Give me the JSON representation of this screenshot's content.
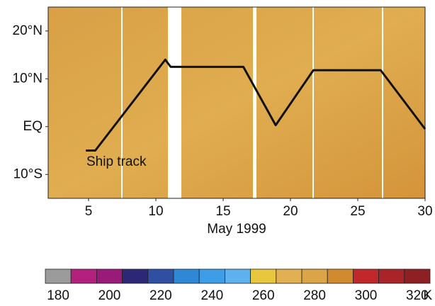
{
  "chart_data": {
    "type": "line",
    "xlabel": "May 1999",
    "annotation": "Ship track",
    "xlim": [
      2,
      30
    ],
    "xticks": [
      5,
      10,
      15,
      20,
      25,
      30
    ],
    "ylim": [
      -15,
      25
    ],
    "yticks": [
      {
        "value": -10,
        "label": "10°S"
      },
      {
        "value": 0,
        "label": "EQ"
      },
      {
        "value": 10,
        "label": "10°N"
      },
      {
        "value": 20,
        "label": "20°N"
      }
    ],
    "series": [
      {
        "name": "Ship track",
        "color": "#111111",
        "x": [
          4.8,
          5.5,
          10.7,
          11.1,
          16.5,
          18.9,
          21.7,
          26.7,
          30
        ],
        "values": [
          -5,
          -5,
          14,
          12.5,
          12.5,
          0.3,
          11.8,
          11.8,
          -0.5
        ]
      }
    ],
    "colorbar": {
      "bins": [
        175,
        185,
        195,
        205,
        215,
        225,
        235,
        245,
        255,
        265,
        275,
        285,
        295,
        305,
        315,
        325
      ],
      "colors": [
        "#9b9b9b",
        "#b4207e",
        "#9a1a79",
        "#2b2877",
        "#2f4fa3",
        "#2f88d6",
        "#3d9de6",
        "#5db1ee",
        "#e8c63e",
        "#e2b052",
        "#dba447",
        "#d18a2e",
        "#c0282a",
        "#a82428",
        "#8e1f23"
      ],
      "ticks": [
        180,
        200,
        220,
        240,
        260,
        280,
        300,
        320
      ],
      "label": "K"
    }
  }
}
